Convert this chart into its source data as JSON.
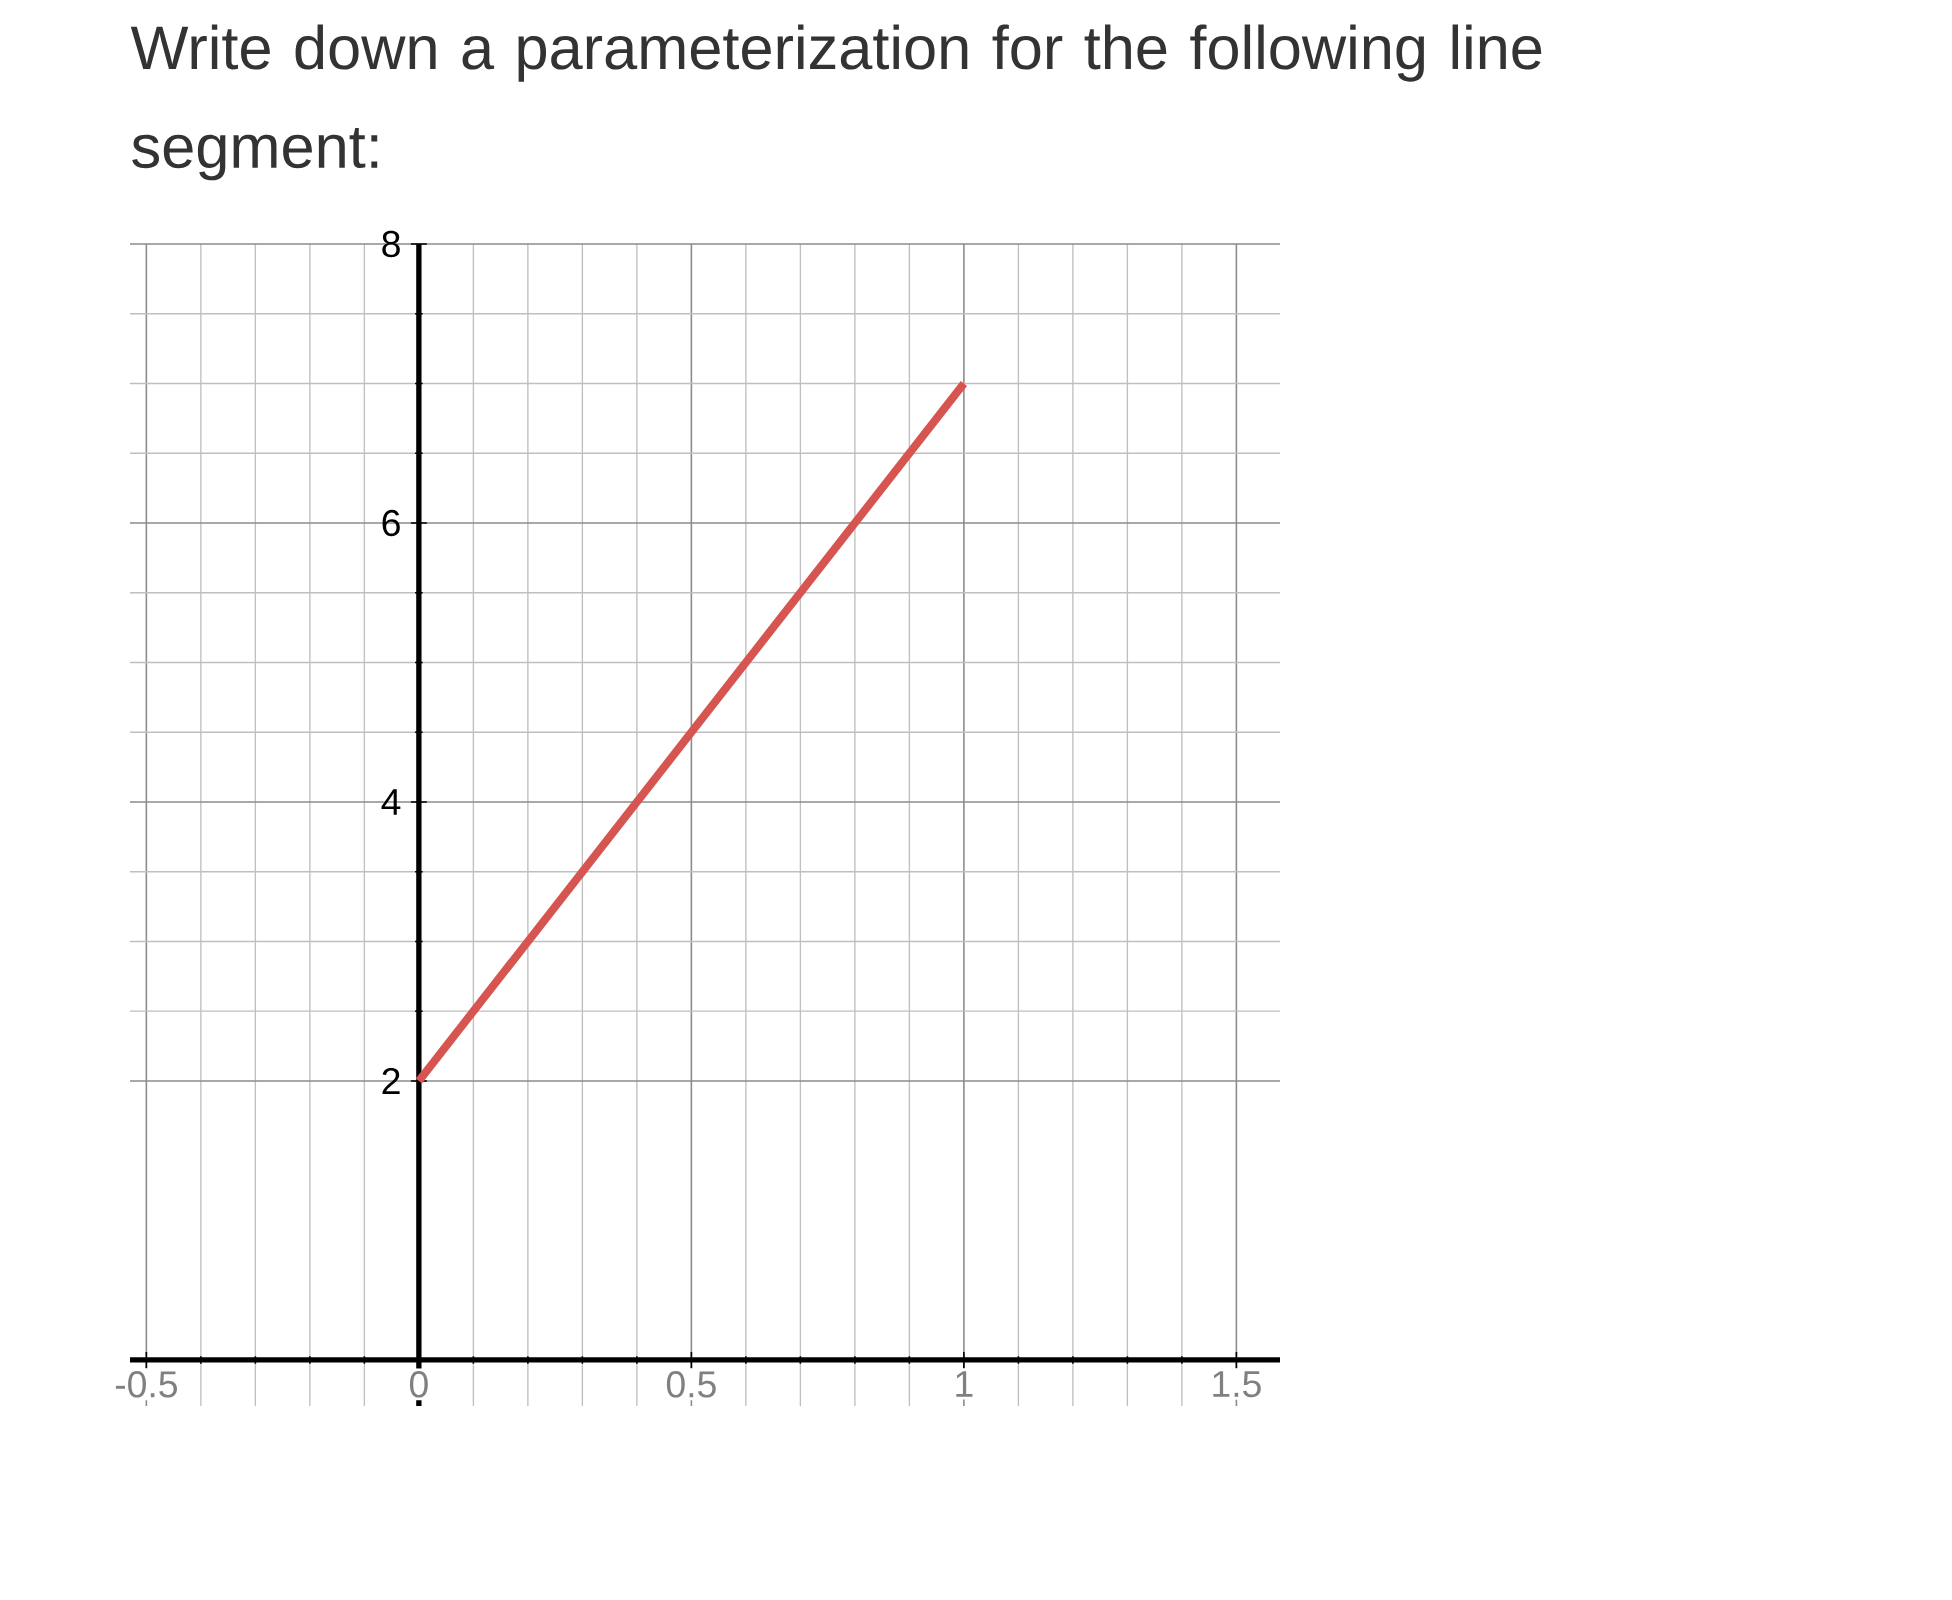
{
  "chart_data": {
    "type": "line",
    "title": "Write down a parameterization for the following line segment:",
    "x": [
      0,
      1
    ],
    "series": [
      {
        "color": "#d65550",
        "values": [
          2,
          7
        ]
      }
    ],
    "xlim": [
      -0.53,
      1.58
    ],
    "ylim": [
      -0.33,
      8
    ],
    "xticks": [
      -0.5,
      0,
      0.5,
      1,
      1.5
    ],
    "yticks": [
      2,
      4,
      6,
      8
    ],
    "grid": true
  }
}
